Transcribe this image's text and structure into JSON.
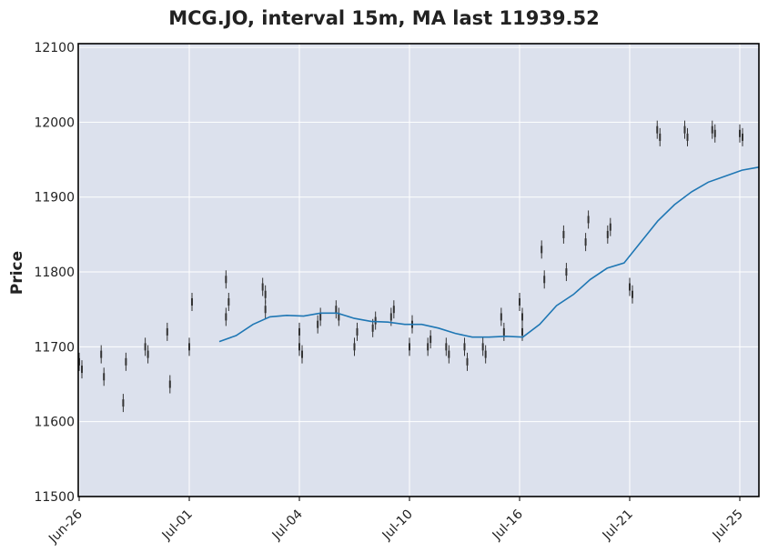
{
  "chart_data": {
    "type": "candlestick",
    "title": "MCG.JO, interval 15m, MA last 11939.52",
    "ylabel": "Price",
    "xlabel": "",
    "ylim": [
      11500,
      12105
    ],
    "yticks": [
      "11500",
      "11600",
      "11700",
      "11800",
      "11900",
      "12000",
      "12100"
    ],
    "xticks": [
      "Jun-26",
      "Jul-01",
      "Jul-04",
      "Jul-10",
      "Jul-16",
      "Jul-21",
      "Jul-25"
    ],
    "grid": true,
    "colors": {
      "candles": "#333333",
      "ma": "#1f77b4",
      "plot_bg": "#dce1ed",
      "grid": "#ffffff"
    },
    "series": [
      {
        "name": "MA",
        "x": [
          "Jul-02",
          "Jul-02",
          "Jul-03",
          "Jul-03",
          "Jul-04",
          "Jul-04",
          "Jul-05",
          "Jul-05",
          "Jul-08",
          "Jul-09",
          "Jul-10",
          "Jul-10",
          "Jul-11",
          "Jul-12",
          "Jul-12",
          "Jul-15",
          "Jul-15",
          "Jul-16",
          "Jul-16",
          "Jul-17",
          "Jul-18",
          "Jul-18",
          "Jul-19",
          "Jul-19",
          "Jul-21",
          "Jul-22",
          "Jul-22",
          "Jul-23",
          "Jul-23",
          "Jul-24",
          "Jul-24",
          "Jul-25",
          "Jul-25"
        ],
        "values": [
          11707,
          11715,
          11730,
          11740,
          11742,
          11741,
          11745,
          11745,
          11738,
          11734,
          11733,
          11730,
          11730,
          11725,
          11718,
          11713,
          11713,
          11714,
          11713,
          11730,
          11755,
          11770,
          11790,
          11805,
          11812,
          11840,
          11868,
          11890,
          11907,
          11920,
          11928,
          11936,
          11940
        ]
      }
    ],
    "price_points": [
      [
        "Jun-26",
        11680
      ],
      [
        "Jun-26",
        11670
      ],
      [
        "Jun-27",
        11690
      ],
      [
        "Jun-27",
        11660
      ],
      [
        "Jun-28",
        11625
      ],
      [
        "Jun-28",
        11680
      ],
      [
        "Jun-29",
        11700
      ],
      [
        "Jun-29",
        11690
      ],
      [
        "Jun-30",
        11720
      ],
      [
        "Jun-30",
        11650
      ],
      [
        "Jul-01",
        11700
      ],
      [
        "Jul-01",
        11760
      ],
      [
        "Jul-02",
        11790
      ],
      [
        "Jul-02",
        11760
      ],
      [
        "Jul-02",
        11740
      ],
      [
        "Jul-03",
        11770
      ],
      [
        "Jul-03",
        11780
      ],
      [
        "Jul-03",
        11750
      ],
      [
        "Jul-04",
        11720
      ],
      [
        "Jul-04",
        11690
      ],
      [
        "Jul-04",
        11700
      ],
      [
        "Jul-05",
        11740
      ],
      [
        "Jul-05",
        11730
      ],
      [
        "Jul-06",
        11740
      ],
      [
        "Jul-06",
        11750
      ],
      [
        "Jul-07",
        11720
      ],
      [
        "Jul-07",
        11700
      ],
      [
        "Jul-08",
        11735
      ],
      [
        "Jul-08",
        11725
      ],
      [
        "Jul-09",
        11750
      ],
      [
        "Jul-09",
        11740
      ],
      [
        "Jul-10",
        11730
      ],
      [
        "Jul-10",
        11700
      ],
      [
        "Jul-11",
        11710
      ],
      [
        "Jul-11",
        11700
      ],
      [
        "Jul-12",
        11690
      ],
      [
        "Jul-12",
        11700
      ],
      [
        "Jul-13",
        11680
      ],
      [
        "Jul-13",
        11700
      ],
      [
        "Jul-14",
        11690
      ],
      [
        "Jul-14",
        11700
      ],
      [
        "Jul-15",
        11720
      ],
      [
        "Jul-15",
        11740
      ],
      [
        "Jul-16",
        11740
      ],
      [
        "Jul-16",
        11760
      ],
      [
        "Jul-16",
        11720
      ],
      [
        "Jul-17",
        11830
      ],
      [
        "Jul-17",
        11790
      ],
      [
        "Jul-18",
        11850
      ],
      [
        "Jul-18",
        11800
      ],
      [
        "Jul-19",
        11840
      ],
      [
        "Jul-19",
        11870
      ],
      [
        "Jul-20",
        11850
      ],
      [
        "Jul-20",
        11860
      ],
      [
        "Jul-21",
        11780
      ],
      [
        "Jul-21",
        11770
      ],
      [
        "Jul-22",
        11990
      ],
      [
        "Jul-22",
        11980
      ],
      [
        "Jul-23",
        11990
      ],
      [
        "Jul-23",
        11980
      ],
      [
        "Jul-24",
        11990
      ],
      [
        "Jul-24",
        11985
      ],
      [
        "Jul-25",
        11985
      ],
      [
        "Jul-25",
        11980
      ]
    ]
  }
}
